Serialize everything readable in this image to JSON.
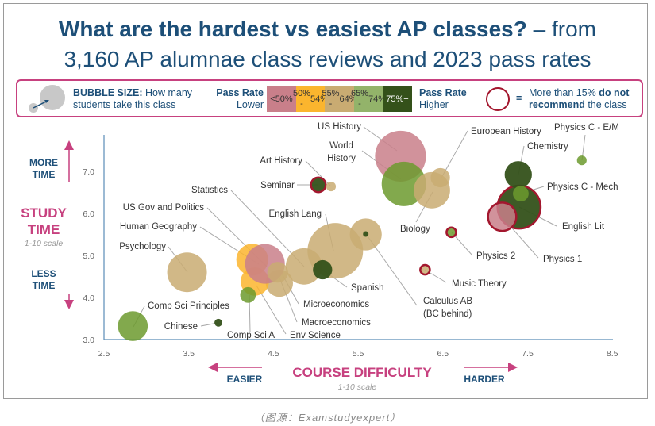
{
  "title": {
    "bold": "What are the hardest vs easiest AP classes?",
    "rest": " – from",
    "line2": "3,160 AP alumnae class reviews and 2023 pass rates"
  },
  "legend": {
    "bubble_bold": "BUBBLE SIZE:",
    "bubble_text1": " How many",
    "bubble_text2": "students take this class",
    "pass_lower_1": "Pass Rate",
    "pass_lower_2": "Lower",
    "pass_higher_1": "Pass Rate",
    "pass_higher_2": "Higher",
    "bins": [
      {
        "label1": "<50%",
        "label2": "",
        "color": "#c97f8a"
      },
      {
        "label1": "50% -",
        "label2": "54%",
        "color": "#fbb52e"
      },
      {
        "label1": "55% -",
        "label2": "64%",
        "color": "#c9ab72"
      },
      {
        "label1": "65% -",
        "label2": "74%",
        "color": "#93b36a"
      },
      {
        "label1": "75%+",
        "label2": "",
        "color": "#34511a",
        "text_color": "#ffffff"
      }
    ],
    "equals": "=",
    "notrec_1a": "More than 15% ",
    "notrec_1b": "do not",
    "notrec_2a": "recommend",
    "notrec_2b": " the class",
    "notrec_color": "#a3172e"
  },
  "yaxis": {
    "more": "MORE",
    "more2": "TIME",
    "title1": "STUDY",
    "title2": "TIME",
    "scale": "1-10 scale",
    "less": "LESS",
    "less2": "TIME"
  },
  "xaxis": {
    "easier": "EASIER",
    "title": "COURSE DIFFICULTY",
    "scale": "1-10 scale",
    "harder": "HARDER"
  },
  "caption": "（图源：Examstudyexpert）",
  "chart_data": {
    "type": "scatter",
    "title": "What are the hardest vs easiest AP classes? – from 3,160 AP alumnae class reviews and 2023 pass rates",
    "xlabel": "COURSE DIFFICULTY (1-10 scale)",
    "ylabel": "STUDY TIME (1-10 scale)",
    "xlim": [
      2.5,
      8.5
    ],
    "ylim": [
      3.0,
      7.7
    ],
    "xticks": [
      "2.5",
      "3.5",
      "4.5",
      "5.5",
      "6.5",
      "7.5",
      "8.5"
    ],
    "yticks": [
      "3.0",
      "4.0",
      "5.0",
      "6.0",
      "7.0"
    ],
    "size_note": "relative number of students (largest = 100)",
    "pass_colors": {
      "<50%": "#c97f8a",
      "50-54%": "#fbb52e",
      "55-64%": "#c9ab72",
      "65-74%": "#6c9a2e",
      "75%+": "#34511a"
    },
    "points": [
      {
        "name": "English Lang",
        "x": 5.23,
        "y": 5.11,
        "size": 100,
        "pass": "55-64%",
        "not_rec": false
      },
      {
        "name": "US History",
        "x": 6.0,
        "y": 7.36,
        "size": 84,
        "pass": "<50%",
        "not_rec": false
      },
      {
        "name": "World History",
        "x": 6.04,
        "y": 6.7,
        "size": 64,
        "pass": "65-74%",
        "not_rec": false
      },
      {
        "name": "English Lit",
        "x": 7.4,
        "y": 6.15,
        "size": 60,
        "pass": "75%+",
        "not_rec": true
      },
      {
        "name": "Psychology",
        "x": 3.48,
        "y": 4.6,
        "size": 51,
        "pass": "55-64%",
        "not_rec": false
      },
      {
        "name": "Biology",
        "x": 6.37,
        "y": 6.55,
        "size": 43,
        "pass": "55-64%",
        "not_rec": false
      },
      {
        "name": "Statistics",
        "x": 4.86,
        "y": 4.74,
        "size": 43,
        "pass": "55-64%",
        "not_rec": false
      },
      {
        "name": "Calculus AB",
        "x": 5.59,
        "y": 5.5,
        "size": 33,
        "pass": "55-64%",
        "not_rec": false
      },
      {
        "name": "Calculus BC",
        "x": 5.59,
        "y": 5.51,
        "size": 1,
        "pass": "75%+",
        "not_rec": false
      },
      {
        "name": "Macroeconomics",
        "x": 4.57,
        "y": 4.34,
        "size": 24,
        "pass": "55-64%",
        "not_rec": false
      },
      {
        "name": "Env Science",
        "x": 4.28,
        "y": 4.38,
        "size": 26,
        "pass": "50-54%",
        "not_rec": false
      },
      {
        "name": "Comp Sci A",
        "x": 4.2,
        "y": 4.06,
        "size": 8,
        "pass": "65-74%",
        "not_rec": false
      },
      {
        "name": "Human Geography",
        "x": 4.25,
        "y": 4.9,
        "size": 33,
        "pass": "50-54%",
        "not_rec": false
      },
      {
        "name": "US Gov and Politics",
        "x": 4.4,
        "y": 4.8,
        "size": 51,
        "pass": "<50%",
        "not_rec": false
      },
      {
        "name": "Microeconomics",
        "x": 4.55,
        "y": 4.6,
        "size": 14,
        "pass": "55-64%",
        "not_rec": false
      },
      {
        "name": "Spanish",
        "x": 5.08,
        "y": 4.66,
        "size": 12,
        "pass": "75%+",
        "not_rec": false
      },
      {
        "name": "Comp Sci Principles",
        "x": 2.84,
        "y": 3.32,
        "size": 29,
        "pass": "65-74%",
        "not_rec": false
      },
      {
        "name": "Chinese",
        "x": 3.85,
        "y": 3.4,
        "size": 2,
        "pass": "75%+",
        "not_rec": false
      },
      {
        "name": "Seminar",
        "x": 5.03,
        "y": 6.68,
        "size": 7,
        "pass": "75%+",
        "not_rec": true
      },
      {
        "name": "Art History",
        "x": 5.18,
        "y": 6.64,
        "size": 3,
        "pass": "55-64%",
        "not_rec": false
      },
      {
        "name": "European History",
        "x": 6.47,
        "y": 6.85,
        "size": 12,
        "pass": "55-64%",
        "not_rec": false
      },
      {
        "name": "Physics 2",
        "x": 6.6,
        "y": 5.55,
        "size": 3,
        "pass": "65-74%",
        "not_rec": true
      },
      {
        "name": "Music Theory",
        "x": 6.29,
        "y": 4.66,
        "size": 3,
        "pass": "55-64%",
        "not_rec": true
      },
      {
        "name": "Chemistry",
        "x": 7.39,
        "y": 6.92,
        "size": 24,
        "pass": "75%+",
        "not_rec": false
      },
      {
        "name": "Physics 1",
        "x": 7.2,
        "y": 5.92,
        "size": 26,
        "pass": "<50%",
        "not_rec": true
      },
      {
        "name": "Physics C - Mech",
        "x": 7.42,
        "y": 6.47,
        "size": 8,
        "pass": "65-74%",
        "not_rec": false
      },
      {
        "name": "Physics C - E/M",
        "x": 8.14,
        "y": 7.26,
        "size": 3,
        "pass": "65-74%",
        "not_rec": false
      }
    ],
    "labels": {
      "Calculus AB": [
        "Calculus AB",
        "(BC behind)"
      ],
      "World History": [
        "World",
        "History"
      ]
    }
  }
}
